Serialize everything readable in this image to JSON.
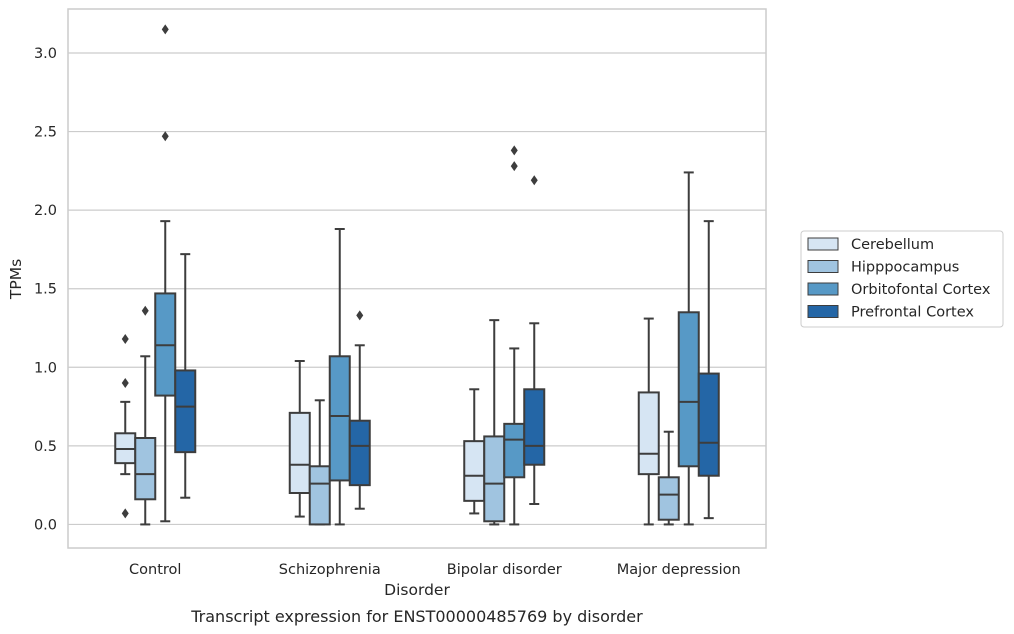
{
  "chart_data": {
    "type": "box",
    "caption": "Transcript expression for ENST00000485769 by disorder",
    "xlabel": "Disorder",
    "ylabel": "TPMs",
    "ylim": [
      -0.15,
      3.28
    ],
    "yticks": [
      0.0,
      0.5,
      1.0,
      1.5,
      2.0,
      2.5,
      3.0
    ],
    "ytick_labels": [
      "0.0",
      "0.5",
      "1.0",
      "1.5",
      "2.0",
      "2.5",
      "3.0"
    ],
    "grid": "horizontal",
    "legend_position": "right",
    "categories": [
      "Control",
      "Schizophrenia",
      "Bipolar disorder",
      "Major depression"
    ],
    "series": [
      {
        "name": "Cerebellum",
        "color": "#d6e5f3",
        "boxes": [
          {
            "whisker_low": 0.32,
            "q1": 0.39,
            "median": 0.48,
            "q3": 0.58,
            "whisker_high": 0.78,
            "outliers": [
              0.07,
              0.9,
              1.18
            ]
          },
          {
            "whisker_low": 0.05,
            "q1": 0.2,
            "median": 0.38,
            "q3": 0.71,
            "whisker_high": 1.04,
            "outliers": []
          },
          {
            "whisker_low": 0.07,
            "q1": 0.15,
            "median": 0.31,
            "q3": 0.53,
            "whisker_high": 0.86,
            "outliers": []
          },
          {
            "whisker_low": 0.0,
            "q1": 0.32,
            "median": 0.45,
            "q3": 0.84,
            "whisker_high": 1.31,
            "outliers": []
          }
        ]
      },
      {
        "name": "Hipppocampus",
        "color": "#a0c4e0",
        "boxes": [
          {
            "whisker_low": 0.0,
            "q1": 0.16,
            "median": 0.32,
            "q3": 0.55,
            "whisker_high": 1.07,
            "outliers": [
              1.36
            ]
          },
          {
            "whisker_low": 0.0,
            "q1": 0.0,
            "median": 0.26,
            "q3": 0.37,
            "whisker_high": 0.79,
            "outliers": []
          },
          {
            "whisker_low": 0.0,
            "q1": 0.02,
            "median": 0.26,
            "q3": 0.56,
            "whisker_high": 1.3,
            "outliers": []
          },
          {
            "whisker_low": 0.0,
            "q1": 0.03,
            "median": 0.19,
            "q3": 0.3,
            "whisker_high": 0.59,
            "outliers": []
          }
        ]
      },
      {
        "name": "Orbitofontal Cortex",
        "color": "#5799c6",
        "boxes": [
          {
            "whisker_low": 0.02,
            "q1": 0.82,
            "median": 1.14,
            "q3": 1.47,
            "whisker_high": 1.93,
            "outliers": [
              2.47,
              3.15
            ]
          },
          {
            "whisker_low": 0.0,
            "q1": 0.28,
            "median": 0.69,
            "q3": 1.07,
            "whisker_high": 1.88,
            "outliers": []
          },
          {
            "whisker_low": 0.0,
            "q1": 0.3,
            "median": 0.54,
            "q3": 0.64,
            "whisker_high": 1.12,
            "outliers": [
              2.28,
              2.38
            ]
          },
          {
            "whisker_low": 0.0,
            "q1": 0.37,
            "median": 0.78,
            "q3": 1.35,
            "whisker_high": 2.24,
            "outliers": []
          }
        ]
      },
      {
        "name": "Prefrontal Cortex",
        "color": "#2466a6",
        "boxes": [
          {
            "whisker_low": 0.17,
            "q1": 0.46,
            "median": 0.75,
            "q3": 0.98,
            "whisker_high": 1.72,
            "outliers": []
          },
          {
            "whisker_low": 0.1,
            "q1": 0.25,
            "median": 0.5,
            "q3": 0.66,
            "whisker_high": 1.14,
            "outliers": [
              1.33
            ]
          },
          {
            "whisker_low": 0.13,
            "q1": 0.38,
            "median": 0.5,
            "q3": 0.86,
            "whisker_high": 1.28,
            "outliers": [
              2.19
            ]
          },
          {
            "whisker_low": 0.04,
            "q1": 0.31,
            "median": 0.52,
            "q3": 0.96,
            "whisker_high": 1.93,
            "outliers": []
          }
        ]
      }
    ]
  }
}
